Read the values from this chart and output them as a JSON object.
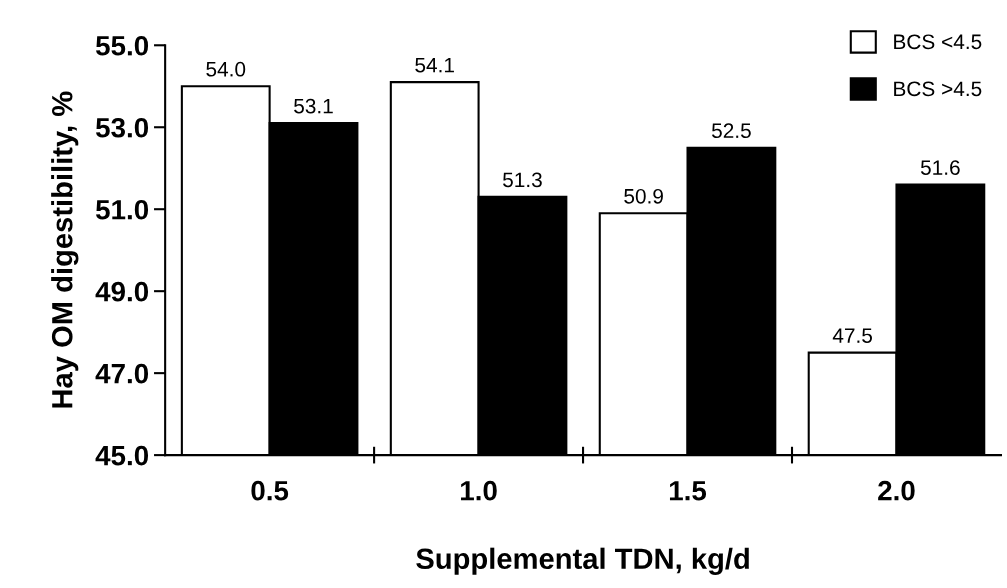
{
  "chart_data": {
    "type": "bar",
    "xlabel": "Supplemental TDN, kg/d",
    "ylabel": "Hay OM digestibility, %",
    "categories": [
      "0.5",
      "1.0",
      "1.5",
      "2.0"
    ],
    "series": [
      {
        "name": "BCS <4.5",
        "color": "#ffffff",
        "values": [
          54.0,
          54.1,
          50.9,
          47.5
        ],
        "value_labels": [
          "54.0",
          "54.1",
          "50.9",
          "47.5"
        ]
      },
      {
        "name": "BCS >4.5",
        "color": "#000000",
        "values": [
          53.1,
          51.3,
          52.5,
          51.6
        ],
        "value_labels": [
          "53.1",
          "51.3",
          "52.5",
          "51.6"
        ]
      }
    ],
    "ylim": [
      45,
      55
    ],
    "yticks": [
      {
        "value": 45,
        "label": "45.0"
      },
      {
        "value": 47,
        "label": "47.0"
      },
      {
        "value": 49,
        "label": "49.0"
      },
      {
        "value": 51,
        "label": "51.0"
      },
      {
        "value": 53,
        "label": "53.0"
      },
      {
        "value": 55,
        "label": "55.0"
      }
    ],
    "grid": false,
    "legend": "top right"
  }
}
